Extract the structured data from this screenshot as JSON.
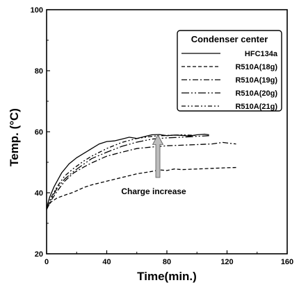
{
  "chart_data": {
    "type": "line",
    "xlabel": "Time(min.)",
    "ylabel": "Temp. (°C)",
    "xlim": [
      0,
      160
    ],
    "ylim": [
      20,
      100
    ],
    "x_ticks": [
      0,
      40,
      80,
      120,
      160
    ],
    "y_ticks": [
      20,
      40,
      60,
      80,
      100
    ],
    "grid": false,
    "legend": {
      "title": "Condenser center",
      "placement": "top-right"
    },
    "annotation": {
      "text": "Charge increase",
      "arrow_x": 74,
      "arrow_from_y": 45,
      "arrow_to_y": 59
    },
    "series": [
      {
        "name": "HFC134a",
        "dash": "solid",
        "points": [
          [
            0,
            35
          ],
          [
            2,
            38.5
          ],
          [
            5,
            42
          ],
          [
            10,
            46.5
          ],
          [
            15,
            49.5
          ],
          [
            20,
            51.5
          ],
          [
            25,
            53
          ],
          [
            30,
            54.5
          ],
          [
            35,
            56
          ],
          [
            40,
            56.8
          ],
          [
            45,
            57
          ],
          [
            50,
            57.6
          ],
          [
            55,
            58.2
          ],
          [
            60,
            57.8
          ],
          [
            65,
            58.4
          ],
          [
            70,
            59
          ],
          [
            75,
            59.1
          ],
          [
            80,
            58.7
          ],
          [
            85,
            58.9
          ],
          [
            90,
            58.8
          ],
          [
            95,
            58.6
          ],
          [
            100,
            59
          ],
          [
            105,
            59.2
          ],
          [
            108,
            59
          ]
        ]
      },
      {
        "name": "R510A(18g)",
        "dash": "dashed",
        "points": [
          [
            0,
            35
          ],
          [
            3,
            37
          ],
          [
            7,
            38.3
          ],
          [
            12,
            39.2
          ],
          [
            18,
            40.2
          ],
          [
            25,
            41.8
          ],
          [
            30,
            42.6
          ],
          [
            40,
            43.8
          ],
          [
            50,
            45
          ],
          [
            60,
            46.2
          ],
          [
            70,
            47
          ],
          [
            75,
            47.5
          ],
          [
            80,
            47.3
          ],
          [
            85,
            47.8
          ],
          [
            90,
            47.6
          ],
          [
            100,
            47.8
          ],
          [
            110,
            48
          ],
          [
            120,
            48.2
          ],
          [
            127,
            48.3
          ]
        ]
      },
      {
        "name": "R510A(19g)",
        "dash": "dash-dot",
        "points": [
          [
            0,
            34.5
          ],
          [
            3,
            37.5
          ],
          [
            7,
            40.5
          ],
          [
            12,
            43.8
          ],
          [
            18,
            46.5
          ],
          [
            25,
            48.5
          ],
          [
            30,
            49.8
          ],
          [
            40,
            52
          ],
          [
            50,
            53.3
          ],
          [
            60,
            54.5
          ],
          [
            70,
            55
          ],
          [
            80,
            55.4
          ],
          [
            90,
            55.6
          ],
          [
            100,
            55.8
          ],
          [
            110,
            56
          ],
          [
            117,
            56.5
          ],
          [
            122,
            56.2
          ],
          [
            126,
            56
          ]
        ]
      },
      {
        "name": "R510A(20g)",
        "dash": "long-dash-dot-dot",
        "points": [
          [
            0,
            34.5
          ],
          [
            3,
            38
          ],
          [
            7,
            41.5
          ],
          [
            12,
            44.5
          ],
          [
            18,
            47
          ],
          [
            25,
            49.5
          ],
          [
            30,
            51.2
          ],
          [
            40,
            53.3
          ],
          [
            50,
            55.2
          ],
          [
            60,
            56.6
          ],
          [
            70,
            57.6
          ],
          [
            80,
            58
          ],
          [
            90,
            58.2
          ],
          [
            100,
            58.5
          ],
          [
            108,
            58.7
          ]
        ]
      },
      {
        "name": "R510A(21g)",
        "dash": "dash-dot-dot",
        "points": [
          [
            0,
            34.5
          ],
          [
            3,
            38.5
          ],
          [
            7,
            42
          ],
          [
            12,
            45.5
          ],
          [
            18,
            48
          ],
          [
            25,
            50.5
          ],
          [
            30,
            52
          ],
          [
            40,
            54.5
          ],
          [
            50,
            56.5
          ],
          [
            60,
            57.8
          ],
          [
            70,
            58.5
          ],
          [
            80,
            58.8
          ],
          [
            90,
            59
          ],
          [
            100,
            58.8
          ]
        ]
      }
    ]
  },
  "style": {
    "line_color": "#000000",
    "arrow_fill": "#bdbdbd",
    "background": "#ffffff"
  }
}
